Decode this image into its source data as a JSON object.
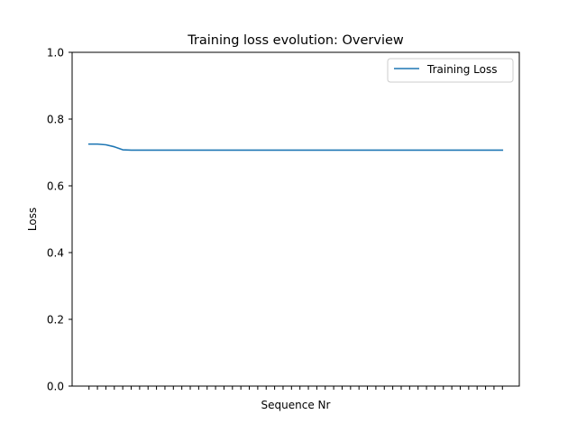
{
  "chart_data": {
    "type": "line",
    "title": "Training loss evolution: Overview",
    "xlabel": "Sequence Nr",
    "ylabel": "Loss",
    "ylim": [
      0,
      1
    ],
    "xlim": [
      -2,
      51
    ],
    "yticks": [
      0.0,
      0.2,
      0.4,
      0.6,
      0.8,
      1.0
    ],
    "ytick_labels": [
      "0.0",
      "0.2",
      "0.4",
      "0.6",
      "0.8",
      "1.0"
    ],
    "x_tick_labels_visible": false,
    "grid": false,
    "legend_position": "top-right",
    "series": [
      {
        "name": "Training Loss",
        "color": "#1f77b4",
        "x": [
          0,
          1,
          2,
          3,
          4,
          5,
          6,
          7,
          8,
          9,
          10,
          11,
          12,
          13,
          14,
          15,
          16,
          17,
          18,
          19,
          20,
          21,
          22,
          23,
          24,
          25,
          26,
          27,
          28,
          29,
          30,
          31,
          32,
          33,
          34,
          35,
          36,
          37,
          38,
          39,
          40,
          41,
          42,
          43,
          44,
          45,
          46,
          47,
          48,
          49
        ],
        "values": [
          0.725,
          0.725,
          0.723,
          0.717,
          0.708,
          0.707,
          0.707,
          0.707,
          0.707,
          0.707,
          0.707,
          0.707,
          0.707,
          0.707,
          0.707,
          0.707,
          0.707,
          0.707,
          0.707,
          0.707,
          0.707,
          0.707,
          0.707,
          0.707,
          0.707,
          0.707,
          0.707,
          0.707,
          0.707,
          0.707,
          0.707,
          0.707,
          0.707,
          0.707,
          0.707,
          0.707,
          0.707,
          0.707,
          0.707,
          0.707,
          0.707,
          0.707,
          0.707,
          0.707,
          0.707,
          0.707,
          0.707,
          0.707,
          0.707,
          0.707
        ]
      }
    ]
  }
}
